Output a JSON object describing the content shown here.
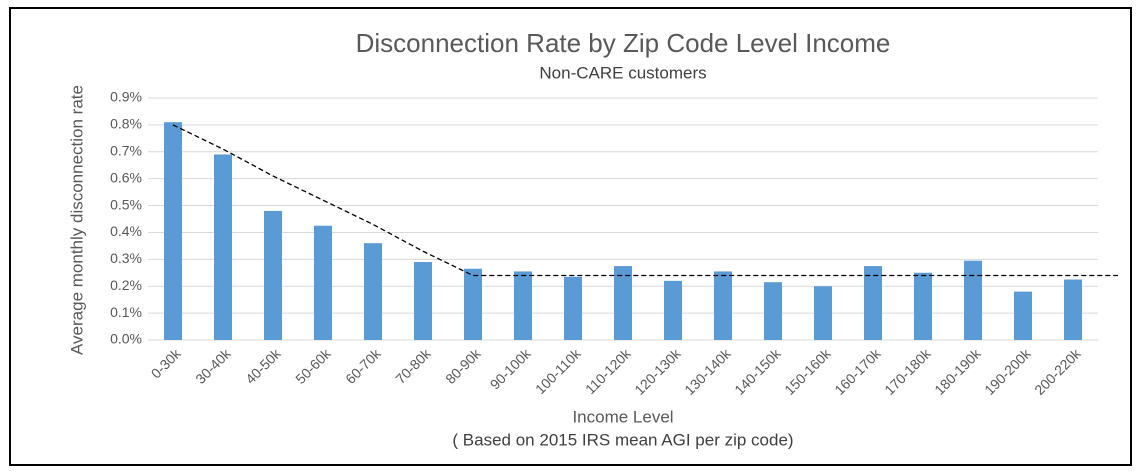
{
  "chart_data": {
    "type": "bar",
    "title": "Disconnection Rate by Zip Code Level Income",
    "subtitle": "Non-CARE customers",
    "x_label": "Income Level",
    "x_note": "( Based on 2015 IRS mean AGI per zip code)",
    "y_label": "Average monthly disconnection rate",
    "categories": [
      "0-30k",
      "30-40k",
      "40-50k",
      "50-60k",
      "60-70k",
      "70-80k",
      "80-90k",
      "90-100k",
      "100-110k",
      "110-120k",
      "120-130k",
      "130-140k",
      "140-150k",
      "150-160k",
      "160-170k",
      "170-180k",
      "180-190k",
      "190-200k",
      "200-220k"
    ],
    "values": [
      0.81,
      0.69,
      0.48,
      0.425,
      0.36,
      0.29,
      0.265,
      0.255,
      0.235,
      0.275,
      0.22,
      0.255,
      0.215,
      0.2,
      0.275,
      0.25,
      0.295,
      0.18,
      0.225
    ],
    "color": "#5b9bd5",
    "trend": {
      "color": "#000000",
      "values": [
        0.8,
        0.71,
        0.61,
        0.52,
        0.43,
        0.33,
        0.24,
        0.24,
        0.24,
        0.24,
        0.24,
        0.24,
        0.24,
        0.24,
        0.24,
        0.24,
        0.24,
        0.24,
        0.24
      ]
    },
    "ylim": [
      0,
      0.9
    ],
    "yticks": [
      {
        "value": 0,
        "label": "0.0%"
      },
      {
        "value": 0.1,
        "label": "0.1%"
      },
      {
        "value": 0.2,
        "label": "0.2%"
      },
      {
        "value": 0.3,
        "label": "0.3%"
      },
      {
        "value": 0.4,
        "label": "0.4%"
      },
      {
        "value": 0.5,
        "label": "0.5%"
      },
      {
        "value": 0.6,
        "label": "0.6%"
      },
      {
        "value": 0.7,
        "label": "0.7%"
      },
      {
        "value": 0.8,
        "label": "0.8%"
      },
      {
        "value": 0.9,
        "label": "0.9%"
      }
    ],
    "grid": true
  }
}
